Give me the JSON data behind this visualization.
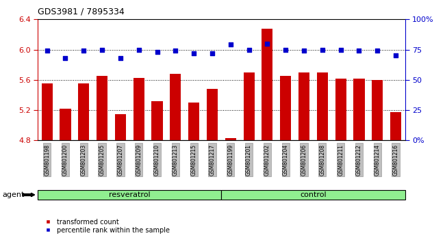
{
  "title": "GDS3981 / 7895334",
  "samples": [
    "GSM801198",
    "GSM801200",
    "GSM801203",
    "GSM801205",
    "GSM801207",
    "GSM801209",
    "GSM801210",
    "GSM801213",
    "GSM801215",
    "GSM801217",
    "GSM801199",
    "GSM801201",
    "GSM801202",
    "GSM801204",
    "GSM801206",
    "GSM801208",
    "GSM801211",
    "GSM801212",
    "GSM801214",
    "GSM801216"
  ],
  "bar_values": [
    5.55,
    5.22,
    5.55,
    5.65,
    5.15,
    5.63,
    5.32,
    5.68,
    5.3,
    5.48,
    4.83,
    5.7,
    6.28,
    5.65,
    5.7,
    5.7,
    5.62,
    5.62,
    5.6,
    5.17
  ],
  "percentile_values": [
    74,
    68,
    74,
    75,
    68,
    75,
    73,
    74,
    72,
    72,
    79,
    75,
    80,
    75,
    74,
    75,
    75,
    74,
    74,
    70
  ],
  "group_labels": [
    "resveratrol",
    "control"
  ],
  "group_sizes": [
    10,
    10
  ],
  "bar_color": "#cc0000",
  "percentile_color": "#0000cc",
  "ylim_left": [
    4.8,
    6.4
  ],
  "ylim_right": [
    0,
    100
  ],
  "yticks_left": [
    4.8,
    5.2,
    5.6,
    6.0,
    6.4
  ],
  "yticks_right": [
    0,
    25,
    50,
    75,
    100
  ],
  "ytick_labels_right": [
    "0%",
    "25",
    "50",
    "75",
    "100%"
  ],
  "grid_values": [
    5.2,
    5.6,
    6.0
  ],
  "bar_color_hex": "#cc0000",
  "percentile_color_hex": "#0000cc",
  "tick_box_color": "#c0c0c0",
  "group_color": "#90ee90",
  "agent_label": "agent",
  "legend_items": [
    "transformed count",
    "percentile rank within the sample"
  ]
}
